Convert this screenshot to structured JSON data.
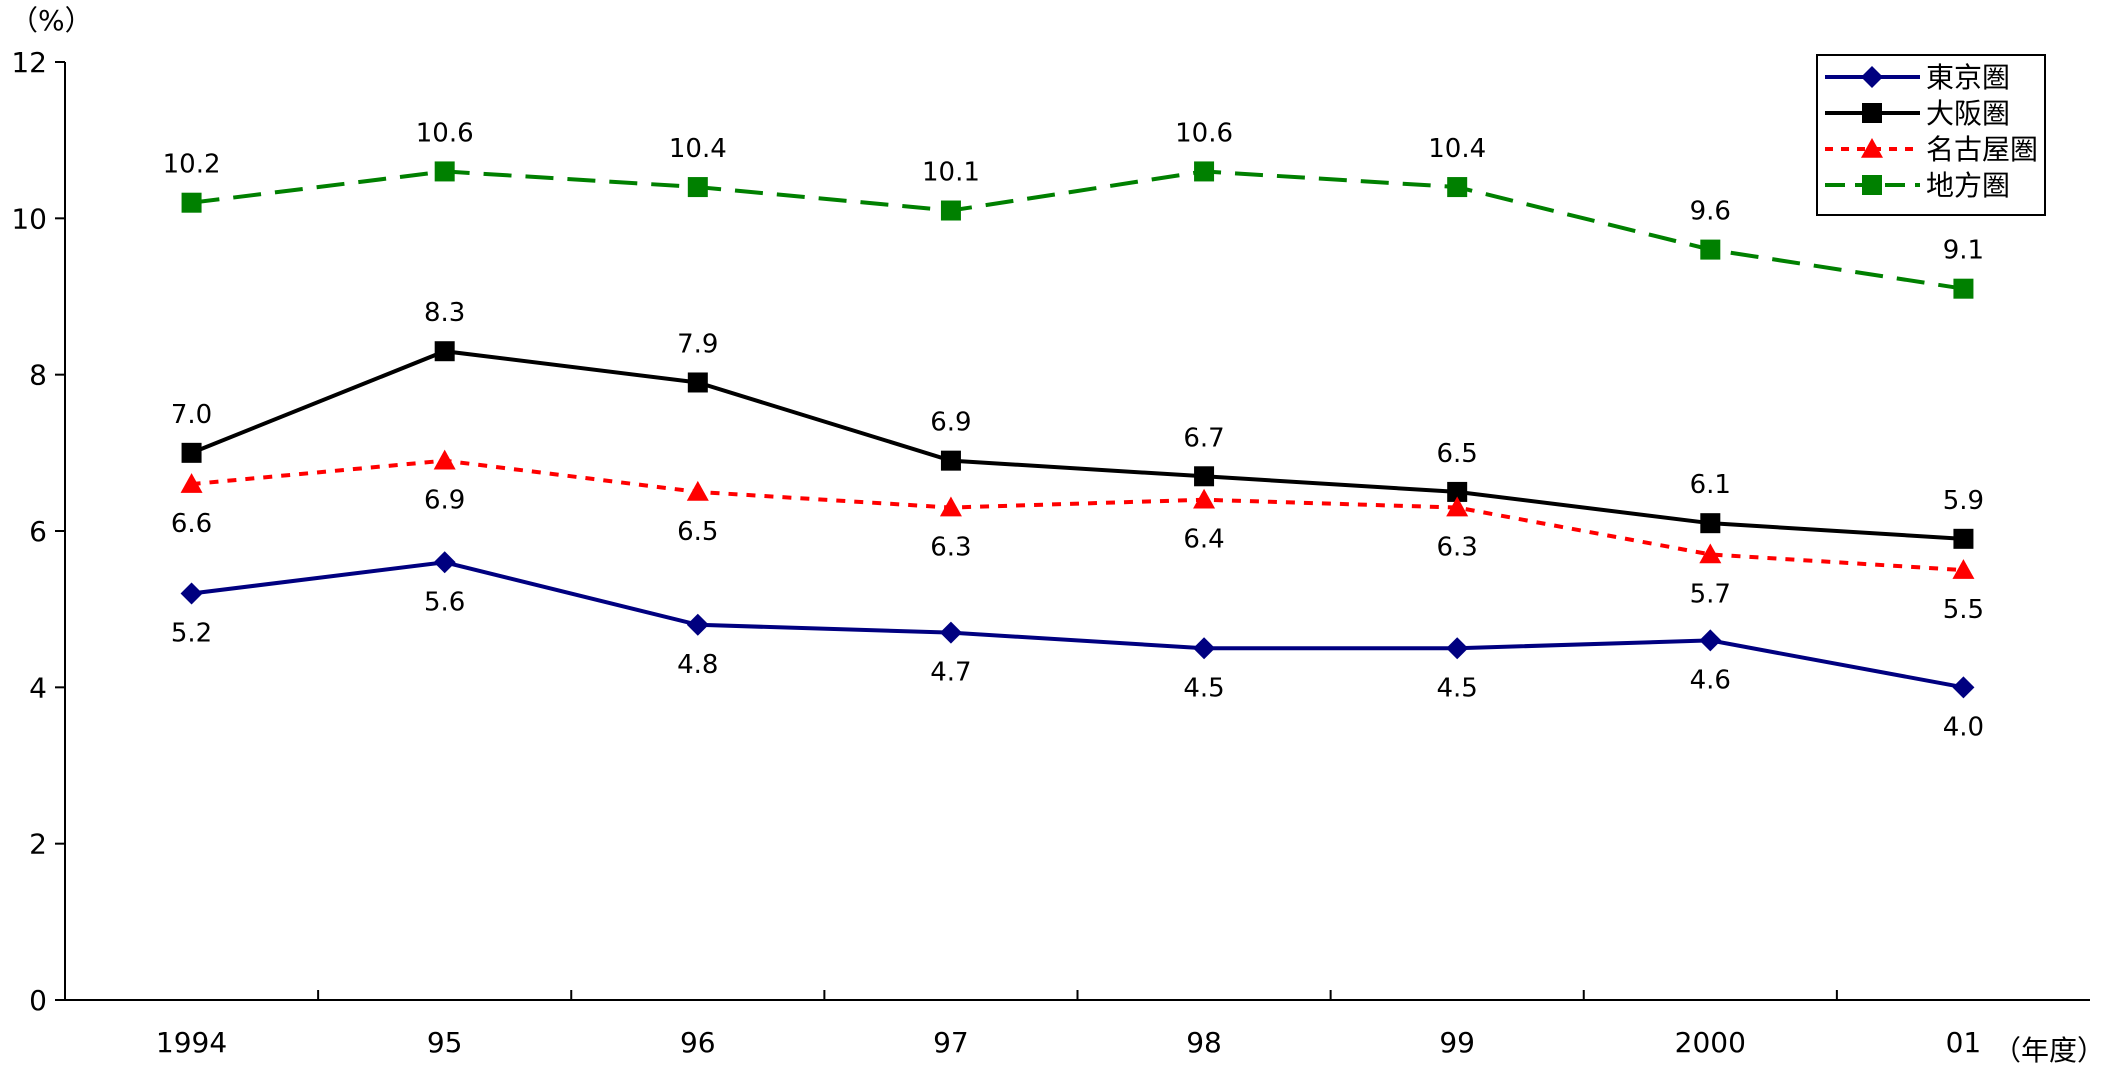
{
  "chart_data": {
    "type": "line",
    "categories": [
      "1994",
      "95",
      "96",
      "97",
      "98",
      "99",
      "2000",
      "01"
    ],
    "y_unit_label": "（%）",
    "x_unit_label": "（年度）",
    "ylim": [
      0,
      12
    ],
    "y_ticks": [
      "0",
      "2",
      "4",
      "6",
      "8",
      "10",
      "12"
    ],
    "grid": false,
    "legend_position": "top-right",
    "series": [
      {
        "name": "東京圏",
        "color": "#000080",
        "dash": "solid",
        "marker": "diamond",
        "values": [
          5.2,
          5.6,
          4.8,
          4.7,
          4.5,
          4.5,
          4.6,
          4.0
        ],
        "labels": [
          "5.2",
          "5.6",
          "4.8",
          "4.7",
          "4.5",
          "4.5",
          "4.6",
          "4.0"
        ],
        "label_side": "below"
      },
      {
        "name": "大阪圏",
        "color": "#000000",
        "dash": "solid",
        "marker": "square",
        "values": [
          7.0,
          8.3,
          7.9,
          6.9,
          6.7,
          6.5,
          6.1,
          5.9
        ],
        "labels": [
          "7.0",
          "8.3",
          "7.9",
          "6.9",
          "6.7",
          "6.5",
          "6.1",
          "5.9"
        ],
        "label_side": "above"
      },
      {
        "name": "名古屋圏",
        "color": "#ff0000",
        "dash": "dotted",
        "marker": "triangle",
        "values": [
          6.6,
          6.9,
          6.5,
          6.3,
          6.4,
          6.3,
          5.7,
          5.5
        ],
        "labels": [
          "6.6",
          "6.9",
          "6.5",
          "6.3",
          "6.4",
          "6.3",
          "5.7",
          "5.5"
        ],
        "label_side": "below"
      },
      {
        "name": "地方圏",
        "color": "#008000",
        "dash": "dashed",
        "marker": "square",
        "values": [
          10.2,
          10.6,
          10.4,
          10.1,
          10.6,
          10.4,
          9.6,
          9.1
        ],
        "labels": [
          "10.2",
          "10.6",
          "10.4",
          "10.1",
          "10.6",
          "10.4",
          "9.6",
          "9.1"
        ],
        "label_side": "above"
      }
    ]
  }
}
